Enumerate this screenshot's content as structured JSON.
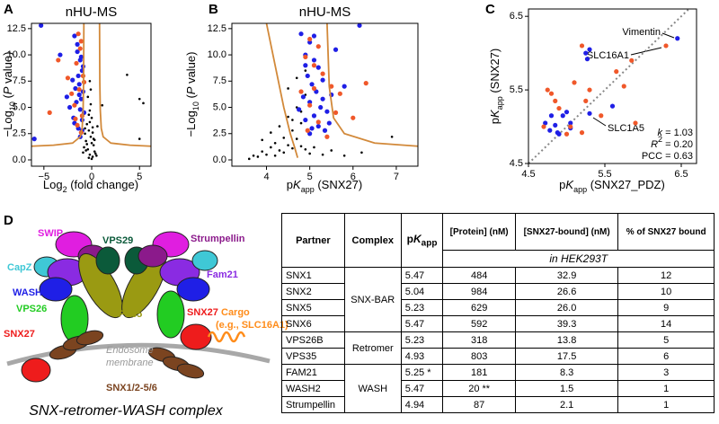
{
  "panels": [
    "A",
    "B",
    "C",
    "D"
  ],
  "chart_data": [
    {
      "type": "scatter",
      "title": "nHU-MS",
      "xlabel": [
        "Log",
        "2",
        " (fold change)"
      ],
      "ylabel": [
        "−Log",
        "10",
        " (",
        "P",
        " value)"
      ],
      "xlim": [
        -6.3,
        6.2
      ],
      "ylim": [
        -0.6,
        13.0
      ],
      "xticks": [
        {
          "value": -5,
          "label": "−5"
        },
        0,
        5
      ],
      "yticks": [
        {
          "value": 0,
          "label": "0.0"
        },
        2.5,
        {
          "value": 5,
          "label": "5.0"
        },
        7.5,
        {
          "value": 10,
          "label": "10.0"
        },
        12.5
      ],
      "series": [
        {
          "color": "#000000",
          "x": [
            0.1,
            -0.2,
            -0.4,
            0.2,
            -0.6,
            -0.1,
            0.3,
            -0.3,
            -0.5,
            0.0,
            -0.7,
            0.1,
            -0.2,
            0.4,
            -0.8,
            -0.1,
            0.2,
            -0.4,
            -0.3,
            0.0,
            -0.6,
            0.1,
            -0.2,
            -0.5,
            0.3,
            -0.1,
            -0.3,
            0.5,
            -0.7,
            0.0,
            3.7,
            5.0,
            5.4,
            5.0,
            1.1,
            -0.9,
            0.6,
            -0.2
          ],
          "values": [
            0.3,
            0.5,
            1.0,
            1.4,
            1.8,
            2.2,
            0.8,
            2.8,
            3.4,
            4.0,
            2.5,
            3.1,
            4.7,
            0.6,
            1.2,
            5.3,
            2.0,
            6.0,
            0.2,
            1.6,
            0.9,
            2.6,
            3.6,
            1.5,
            1.9,
            6.7,
            4.3,
            0.4,
            3.0,
            0.1,
            8.1,
            5.8,
            5.4,
            2.0,
            5.2,
            0.7,
            3.2,
            7.5
          ]
        },
        {
          "color": "#1f1fe6",
          "x": [
            -5.3,
            -3.3,
            -1.8,
            -1.5,
            -1.2,
            -1.0,
            -1.4,
            -2.0,
            -1.7,
            -1.3,
            -0.9,
            -1.1,
            -1.6,
            -2.3,
            -1.2,
            -0.8,
            -1.9,
            -1.0,
            -1.4,
            -6.0,
            -1.5,
            -1.1,
            -0.9,
            -1.3,
            -2.6,
            -1.8,
            -1.0,
            -1.2
          ],
          "values": [
            12.8,
            10.0,
            11.8,
            11.0,
            9.5,
            8.5,
            8.0,
            7.6,
            6.8,
            7.2,
            6.5,
            5.8,
            5.5,
            5.0,
            4.8,
            4.5,
            4.0,
            3.8,
            3.0,
            2.0,
            10.3,
            9.8,
            8.9,
            6.2,
            6.0,
            3.5,
            2.8,
            2.2
          ]
        },
        {
          "color": "#f0582a",
          "x": [
            -3.5,
            -2.5,
            -1.4,
            -1.1,
            -1.6,
            -2.1,
            -0.9,
            -1.3,
            -1.8,
            -1.0,
            -1.5,
            -4.4,
            -1.2,
            -0.8,
            -1.7,
            -1.1
          ],
          "values": [
            9.5,
            7.8,
            12.0,
            11.3,
            9.2,
            6.3,
            8.0,
            6.7,
            5.2,
            4.2,
            3.3,
            4.5,
            10.6,
            7.4,
            3.9,
            2.6
          ]
        }
      ],
      "curves": [
        {
          "color": "#d2893a",
          "x": [
            -6.3,
            -4,
            -2,
            -1.2,
            -1.0,
            -0.9,
            -0.85,
            -0.82
          ],
          "values": [
            1.3,
            1.4,
            1.6,
            2.2,
            3.0,
            4.7,
            7.3,
            13.0
          ]
        },
        {
          "color": "#d2893a",
          "x": [
            0.82,
            0.85,
            0.9,
            1.0,
            1.2,
            2,
            4,
            6.2
          ],
          "values": [
            13.0,
            7.3,
            4.7,
            3.0,
            2.2,
            1.6,
            1.4,
            1.3
          ]
        }
      ]
    },
    {
      "type": "scatter",
      "title": "nHU-MS",
      "xlabel": [
        "p",
        "K",
        "app",
        " (SNX27)"
      ],
      "ylabel": [
        "−Log",
        "10",
        " (",
        "P",
        " value)"
      ],
      "xlim": [
        3.2,
        7.5
      ],
      "ylim": [
        -0.6,
        13.0
      ],
      "xticks": [
        4,
        5,
        6,
        7
      ],
      "yticks": [
        {
          "value": 0,
          "label": "0.0"
        },
        2.5,
        {
          "value": 5,
          "label": "5.0"
        },
        7.5,
        {
          "value": 10,
          "label": "10.0"
        },
        12.5
      ],
      "series": [
        {
          "color": "#000000",
          "x": [
            3.6,
            3.7,
            3.8,
            3.9,
            4.0,
            4.1,
            4.2,
            4.3,
            4.4,
            4.5,
            4.6,
            4.7,
            4.8,
            4.9,
            3.9,
            4.1,
            4.3,
            4.5,
            4.7,
            4.9,
            4.2,
            4.4,
            4.6,
            4.8,
            5.0,
            4.5,
            4.7,
            4.9,
            5.1,
            5.3,
            5.5,
            5.8,
            6.2,
            6.9,
            4.6,
            4.8
          ],
          "values": [
            0.1,
            0.4,
            0.3,
            0.8,
            0.5,
            1.2,
            1.6,
            0.9,
            2.1,
            1.4,
            2.8,
            2.0,
            3.5,
            1.0,
            1.9,
            2.6,
            3.2,
            4.1,
            5.0,
            6.2,
            0.4,
            0.7,
            1.1,
            1.3,
            0.6,
            6.8,
            7.8,
            8.5,
            1.2,
            0.5,
            0.9,
            0.4,
            0.7,
            2.2,
            3.8,
            4.6
          ]
        },
        {
          "color": "#1f1fe6",
          "x": [
            4.8,
            4.9,
            5.0,
            5.1,
            5.2,
            4.95,
            5.05,
            5.3,
            5.15,
            4.85,
            5.0,
            5.25,
            5.4,
            5.1,
            4.9,
            5.2,
            5.35,
            5.0,
            6.15,
            5.6,
            5.8,
            5.5,
            4.9,
            5.1,
            5.3,
            4.75,
            5.45,
            5.05
          ],
          "values": [
            12.0,
            10.0,
            11.2,
            9.5,
            8.8,
            8.0,
            7.2,
            7.6,
            6.5,
            6.0,
            5.5,
            5.0,
            4.6,
            4.2,
            3.8,
            3.2,
            2.8,
            2.5,
            12.8,
            10.5,
            7.0,
            6.2,
            9.0,
            11.8,
            5.8,
            4.8,
            3.5,
            3.0
          ]
        },
        {
          "color": "#f0582a",
          "x": [
            5.0,
            5.2,
            4.9,
            5.1,
            5.3,
            6.3,
            5.5,
            5.7,
            4.8,
            5.0,
            5.6,
            5.2,
            4.95,
            5.4,
            5.1,
            6.0
          ],
          "values": [
            11.5,
            10.8,
            9.8,
            9.0,
            8.2,
            7.3,
            7.0,
            6.3,
            6.5,
            5.2,
            4.5,
            3.6,
            2.8,
            2.2,
            6.8,
            4.0
          ]
        }
      ],
      "curves": [
        {
          "color": "#d2893a",
          "x": [
            4.0,
            4.2,
            4.4,
            4.55,
            4.65,
            4.72
          ],
          "values": [
            13.0,
            9.0,
            5.0,
            2.5,
            1.2,
            0.2
          ]
        },
        {
          "color": "#d2893a",
          "x": [
            5.4,
            5.45,
            5.55,
            5.8,
            6.5,
            7.5
          ],
          "values": [
            13.0,
            7.0,
            4.0,
            2.5,
            1.6,
            1.3
          ]
        }
      ]
    },
    {
      "type": "scatter",
      "xlabel": [
        "p",
        "K",
        "app",
        " (SNX27_PDZ)"
      ],
      "ylabel": [
        "p",
        "K",
        "app",
        " (SNX27)"
      ],
      "xlim": [
        4.5,
        6.7
      ],
      "ylim": [
        4.5,
        6.6
      ],
      "xticks": [
        4.5,
        5.5,
        6.5
      ],
      "yticks": [
        4.5,
        5.5,
        6.5
      ],
      "diagonal": true,
      "series": [
        {
          "color": "#1f1fe6",
          "x": [
            6.45,
            4.72,
            4.78,
            4.85,
            4.9,
            4.95,
            5.0,
            5.05,
            5.25,
            5.27,
            5.3,
            5.3,
            4.8,
            5.05,
            5.6,
            4.88
          ],
          "values": [
            6.2,
            5.05,
            4.95,
            5.02,
            4.9,
            5.15,
            5.2,
            5.05,
            6.0,
            5.92,
            6.05,
            5.18,
            5.15,
            4.98,
            5.28,
            4.92
          ]
        },
        {
          "color": "#f0582a",
          "x": [
            6.3,
            4.7,
            4.8,
            5.2,
            5.25,
            5.3,
            5.1,
            5.0,
            5.65,
            5.75,
            5.85,
            5.9,
            5.45,
            4.9,
            5.05,
            5.2,
            4.85,
            4.75
          ],
          "values": [
            6.1,
            5.0,
            5.45,
            6.1,
            5.35,
            5.5,
            5.6,
            4.9,
            5.75,
            5.55,
            5.9,
            5.05,
            5.15,
            5.25,
            5.0,
            4.92,
            5.35,
            5.5
          ]
        }
      ],
      "annotations": [
        "Vimentin",
        "SLC16A1",
        "SLC1A5"
      ],
      "stats": [
        [
          "k",
          " = 1.03"
        ],
        [
          "R",
          "2",
          " = 0.20"
        ],
        [
          "PCC = 0.63"
        ]
      ]
    }
  ],
  "diagram": {
    "labels": [
      "SWIP",
      "CapZ",
      "WASH",
      "VPS26",
      "SNX27",
      "VPS29",
      "VPS35",
      "Strumpellin",
      "Fam21",
      "SNX27",
      "Cargo",
      "(e.g., SLC16A1)",
      "Endosome",
      "membrane",
      "SNX1/2-5/6"
    ],
    "caption": "SNX-retromer-WASH complex"
  },
  "table": {
    "columns": [
      "Partner",
      "Complex",
      [
        "p",
        "K",
        "app"
      ],
      "[Protein] (nM)",
      "[SNX27-bound] (nM)",
      "% of SNX27 bound"
    ],
    "subheader": "in HEK293T",
    "groups": [
      {
        "complex": "SNX-BAR",
        "rows": [
          [
            "SNX1",
            "5.47",
            "484",
            "32.9",
            "12"
          ],
          [
            "SNX2",
            "5.04",
            "984",
            "26.6",
            "10"
          ],
          [
            "SNX5",
            "5.23",
            "629",
            "26.0",
            "9"
          ],
          [
            "SNX6",
            "5.47",
            "592",
            "39.3",
            "14"
          ]
        ]
      },
      {
        "complex": "Retromer",
        "rows": [
          [
            "VPS26B",
            "5.23",
            "318",
            "13.8",
            "5"
          ],
          [
            "VPS35",
            "4.93",
            "803",
            "17.5",
            "6"
          ]
        ]
      },
      {
        "complex": "WASH",
        "rows": [
          [
            "FAM21",
            "5.25 *",
            "181",
            "8.3",
            "3"
          ],
          [
            "WASH2",
            "5.47",
            "20 **",
            "1.5",
            "1"
          ],
          [
            "Strumpellin",
            "4.94",
            "87",
            "2.1",
            "1"
          ]
        ]
      }
    ]
  }
}
